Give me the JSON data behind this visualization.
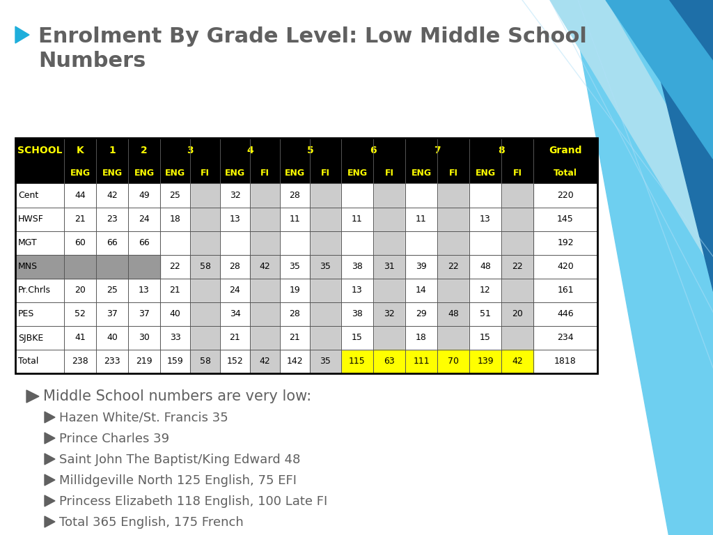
{
  "title_line1": "Enrolment By Grade Level: Low Middle School",
  "title_line2": "Numbers",
  "title_color": "#606060",
  "background_color": "#ffffff",
  "header_bg": "#000000",
  "header_text_color": "#ffff00",
  "rows": [
    {
      "school": "Cent",
      "K": "44",
      "1": "42",
      "2": "49",
      "3ENG": "25",
      "3FI": "",
      "4ENG": "32",
      "4FI": "",
      "5ENG": "28",
      "5FI": "",
      "6ENG": "",
      "6FI": "",
      "7ENG": "",
      "7FI": "",
      "8ENG": "",
      "8FI": "",
      "total": "220",
      "mns_gray": false,
      "is_total": false
    },
    {
      "school": "HWSF",
      "K": "21",
      "1": "23",
      "2": "24",
      "3ENG": "18",
      "3FI": "",
      "4ENG": "13",
      "4FI": "",
      "5ENG": "11",
      "5FI": "",
      "6ENG": "11",
      "6FI": "",
      "7ENG": "11",
      "7FI": "",
      "8ENG": "13",
      "8FI": "",
      "total": "145",
      "mns_gray": false,
      "is_total": false
    },
    {
      "school": "MGT",
      "K": "60",
      "1": "66",
      "2": "66",
      "3ENG": "",
      "3FI": "",
      "4ENG": "",
      "4FI": "",
      "5ENG": "",
      "5FI": "",
      "6ENG": "",
      "6FI": "",
      "7ENG": "",
      "7FI": "",
      "8ENG": "",
      "8FI": "",
      "total": "192",
      "mns_gray": false,
      "is_total": false
    },
    {
      "school": "MNS",
      "K": "",
      "1": "",
      "2": "",
      "3ENG": "22",
      "3FI": "58",
      "4ENG": "28",
      "4FI": "42",
      "5ENG": "35",
      "5FI": "35",
      "6ENG": "38",
      "6FI": "31",
      "7ENG": "39",
      "7FI": "22",
      "8ENG": "48",
      "8FI": "22",
      "total": "420",
      "mns_gray": true,
      "is_total": false
    },
    {
      "school": "Pr.Chrls",
      "K": "20",
      "1": "25",
      "2": "13",
      "3ENG": "21",
      "3FI": "",
      "4ENG": "24",
      "4FI": "",
      "5ENG": "19",
      "5FI": "",
      "6ENG": "13",
      "6FI": "",
      "7ENG": "14",
      "7FI": "",
      "8ENG": "12",
      "8FI": "",
      "total": "161",
      "mns_gray": false,
      "is_total": false
    },
    {
      "school": "PES",
      "K": "52",
      "1": "37",
      "2": "37",
      "3ENG": "40",
      "3FI": "",
      "4ENG": "34",
      "4FI": "",
      "5ENG": "28",
      "5FI": "",
      "6ENG": "38",
      "6FI": "32",
      "7ENG": "29",
      "7FI": "48",
      "8ENG": "51",
      "8FI": "20",
      "total": "446",
      "mns_gray": false,
      "is_total": false
    },
    {
      "school": "SJBKE",
      "K": "41",
      "1": "40",
      "2": "30",
      "3ENG": "33",
      "3FI": "",
      "4ENG": "21",
      "4FI": "",
      "5ENG": "21",
      "5FI": "",
      "6ENG": "15",
      "6FI": "",
      "7ENG": "18",
      "7FI": "",
      "8ENG": "15",
      "8FI": "",
      "total": "234",
      "mns_gray": false,
      "is_total": false
    },
    {
      "school": "Total",
      "K": "238",
      "1": "233",
      "2": "219",
      "3ENG": "159",
      "3FI": "58",
      "4ENG": "152",
      "4FI": "42",
      "5ENG": "142",
      "5FI": "35",
      "6ENG": "115",
      "6FI": "63",
      "7ENG": "111",
      "7FI": "70",
      "8ENG": "139",
      "8FI": "42",
      "total": "1818",
      "mns_gray": false,
      "is_total": true
    }
  ],
  "bullet_main": "Middle School numbers are very low:",
  "bullet_subs": [
    "Hazen White/St. Francis 35",
    "Prince Charles 39",
    "Saint John The Baptist/King Edward 48",
    "Millidgeville North 125 English, 75 EFI",
    "Princess Elizabeth 118 English, 100 Late FI",
    "Total 365 English, 175 French"
  ]
}
